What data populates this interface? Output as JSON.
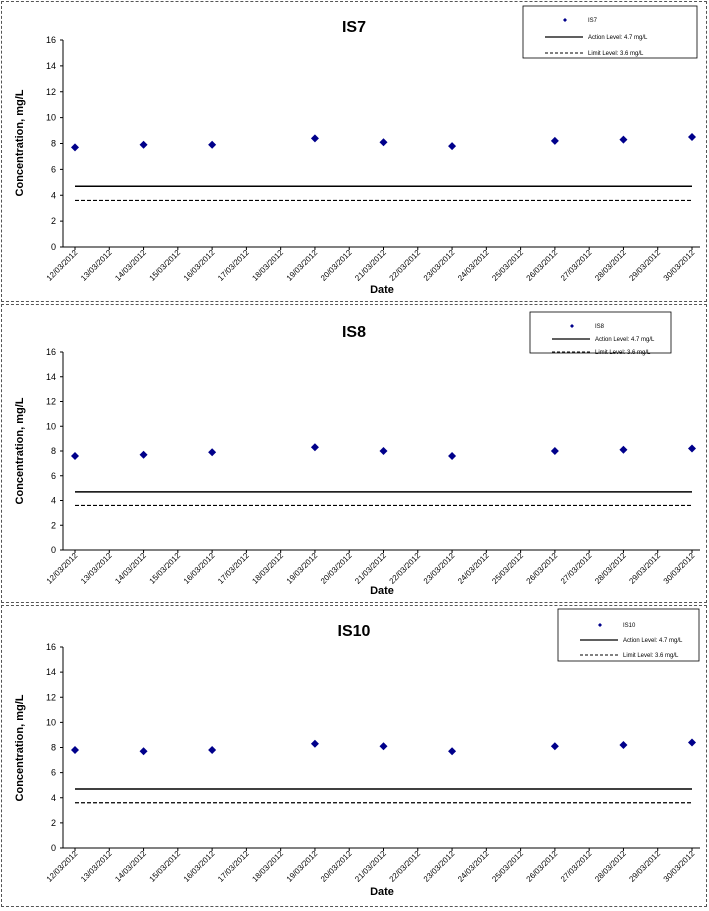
{
  "x_categories": [
    "12/03/2012",
    "13/03/2012",
    "14/03/2012",
    "15/03/2012",
    "16/03/2012",
    "17/03/2012",
    "18/03/2012",
    "19/03/2012",
    "20/03/2012",
    "21/03/2012",
    "22/03/2012",
    "23/03/2012",
    "24/03/2012",
    "25/03/2012",
    "26/03/2012",
    "27/03/2012",
    "28/03/2012",
    "29/03/2012",
    "30/03/2012"
  ],
  "chart_data": [
    {
      "type": "scatter",
      "title": "IS7",
      "xlabel": "Date",
      "ylabel": "Concentration, mg/L",
      "ylim": [
        0,
        16
      ],
      "yticks": [
        "0",
        "2",
        "4",
        "6",
        "8",
        "10",
        "12",
        "14",
        "16"
      ],
      "legend": {
        "position": "top-right",
        "series": "IS7",
        "action": "Action Level: 4.7 mg/L",
        "limit": "Limit Level: 3.6 mg/L"
      },
      "action_level": 4.7,
      "limit_level": 3.6,
      "points": [
        {
          "x": "12/03/2012",
          "y": 7.7
        },
        {
          "x": "14/03/2012",
          "y": 7.9
        },
        {
          "x": "16/03/2012",
          "y": 7.9
        },
        {
          "x": "19/03/2012",
          "y": 8.4
        },
        {
          "x": "21/03/2012",
          "y": 8.1
        },
        {
          "x": "23/03/2012",
          "y": 7.8
        },
        {
          "x": "26/03/2012",
          "y": 8.2
        },
        {
          "x": "28/03/2012",
          "y": 8.3
        },
        {
          "x": "30/03/2012",
          "y": 8.5
        }
      ]
    },
    {
      "type": "scatter",
      "title": "IS8",
      "xlabel": "Date",
      "ylabel": "Concentration, mg/L",
      "ylim": [
        0,
        16
      ],
      "yticks": [
        "0",
        "2",
        "4",
        "6",
        "8",
        "10",
        "12",
        "14",
        "16"
      ],
      "legend": {
        "position": "top-right",
        "series": "IS8",
        "action": "Action Level: 4.7 mg/L",
        "limit": "Limit Level: 3.6 mg/L"
      },
      "action_level": 4.7,
      "limit_level": 3.6,
      "points": [
        {
          "x": "12/03/2012",
          "y": 7.6
        },
        {
          "x": "14/03/2012",
          "y": 7.7
        },
        {
          "x": "16/03/2012",
          "y": 7.9
        },
        {
          "x": "19/03/2012",
          "y": 8.3
        },
        {
          "x": "21/03/2012",
          "y": 8.0
        },
        {
          "x": "23/03/2012",
          "y": 7.6
        },
        {
          "x": "26/03/2012",
          "y": 8.0
        },
        {
          "x": "28/03/2012",
          "y": 8.1
        },
        {
          "x": "30/03/2012",
          "y": 8.2
        }
      ]
    },
    {
      "type": "scatter",
      "title": "IS10",
      "xlabel": "Date",
      "ylabel": "Concentration, mg/L",
      "ylim": [
        0,
        16
      ],
      "yticks": [
        "0",
        "2",
        "4",
        "6",
        "8",
        "10",
        "12",
        "14",
        "16"
      ],
      "legend": {
        "position": "top-right",
        "series": "IS10",
        "action": "Action Level: 4.7 mg/L",
        "limit": "Limit Level: 3.6 mg/L"
      },
      "action_level": 4.7,
      "limit_level": 3.6,
      "points": [
        {
          "x": "12/03/2012",
          "y": 7.8
        },
        {
          "x": "14/03/2012",
          "y": 7.7
        },
        {
          "x": "16/03/2012",
          "y": 7.8
        },
        {
          "x": "19/03/2012",
          "y": 8.3
        },
        {
          "x": "21/03/2012",
          "y": 8.1
        },
        {
          "x": "23/03/2012",
          "y": 7.7
        },
        {
          "x": "26/03/2012",
          "y": 8.1
        },
        {
          "x": "28/03/2012",
          "y": 8.2
        },
        {
          "x": "30/03/2012",
          "y": 8.4
        }
      ]
    }
  ]
}
